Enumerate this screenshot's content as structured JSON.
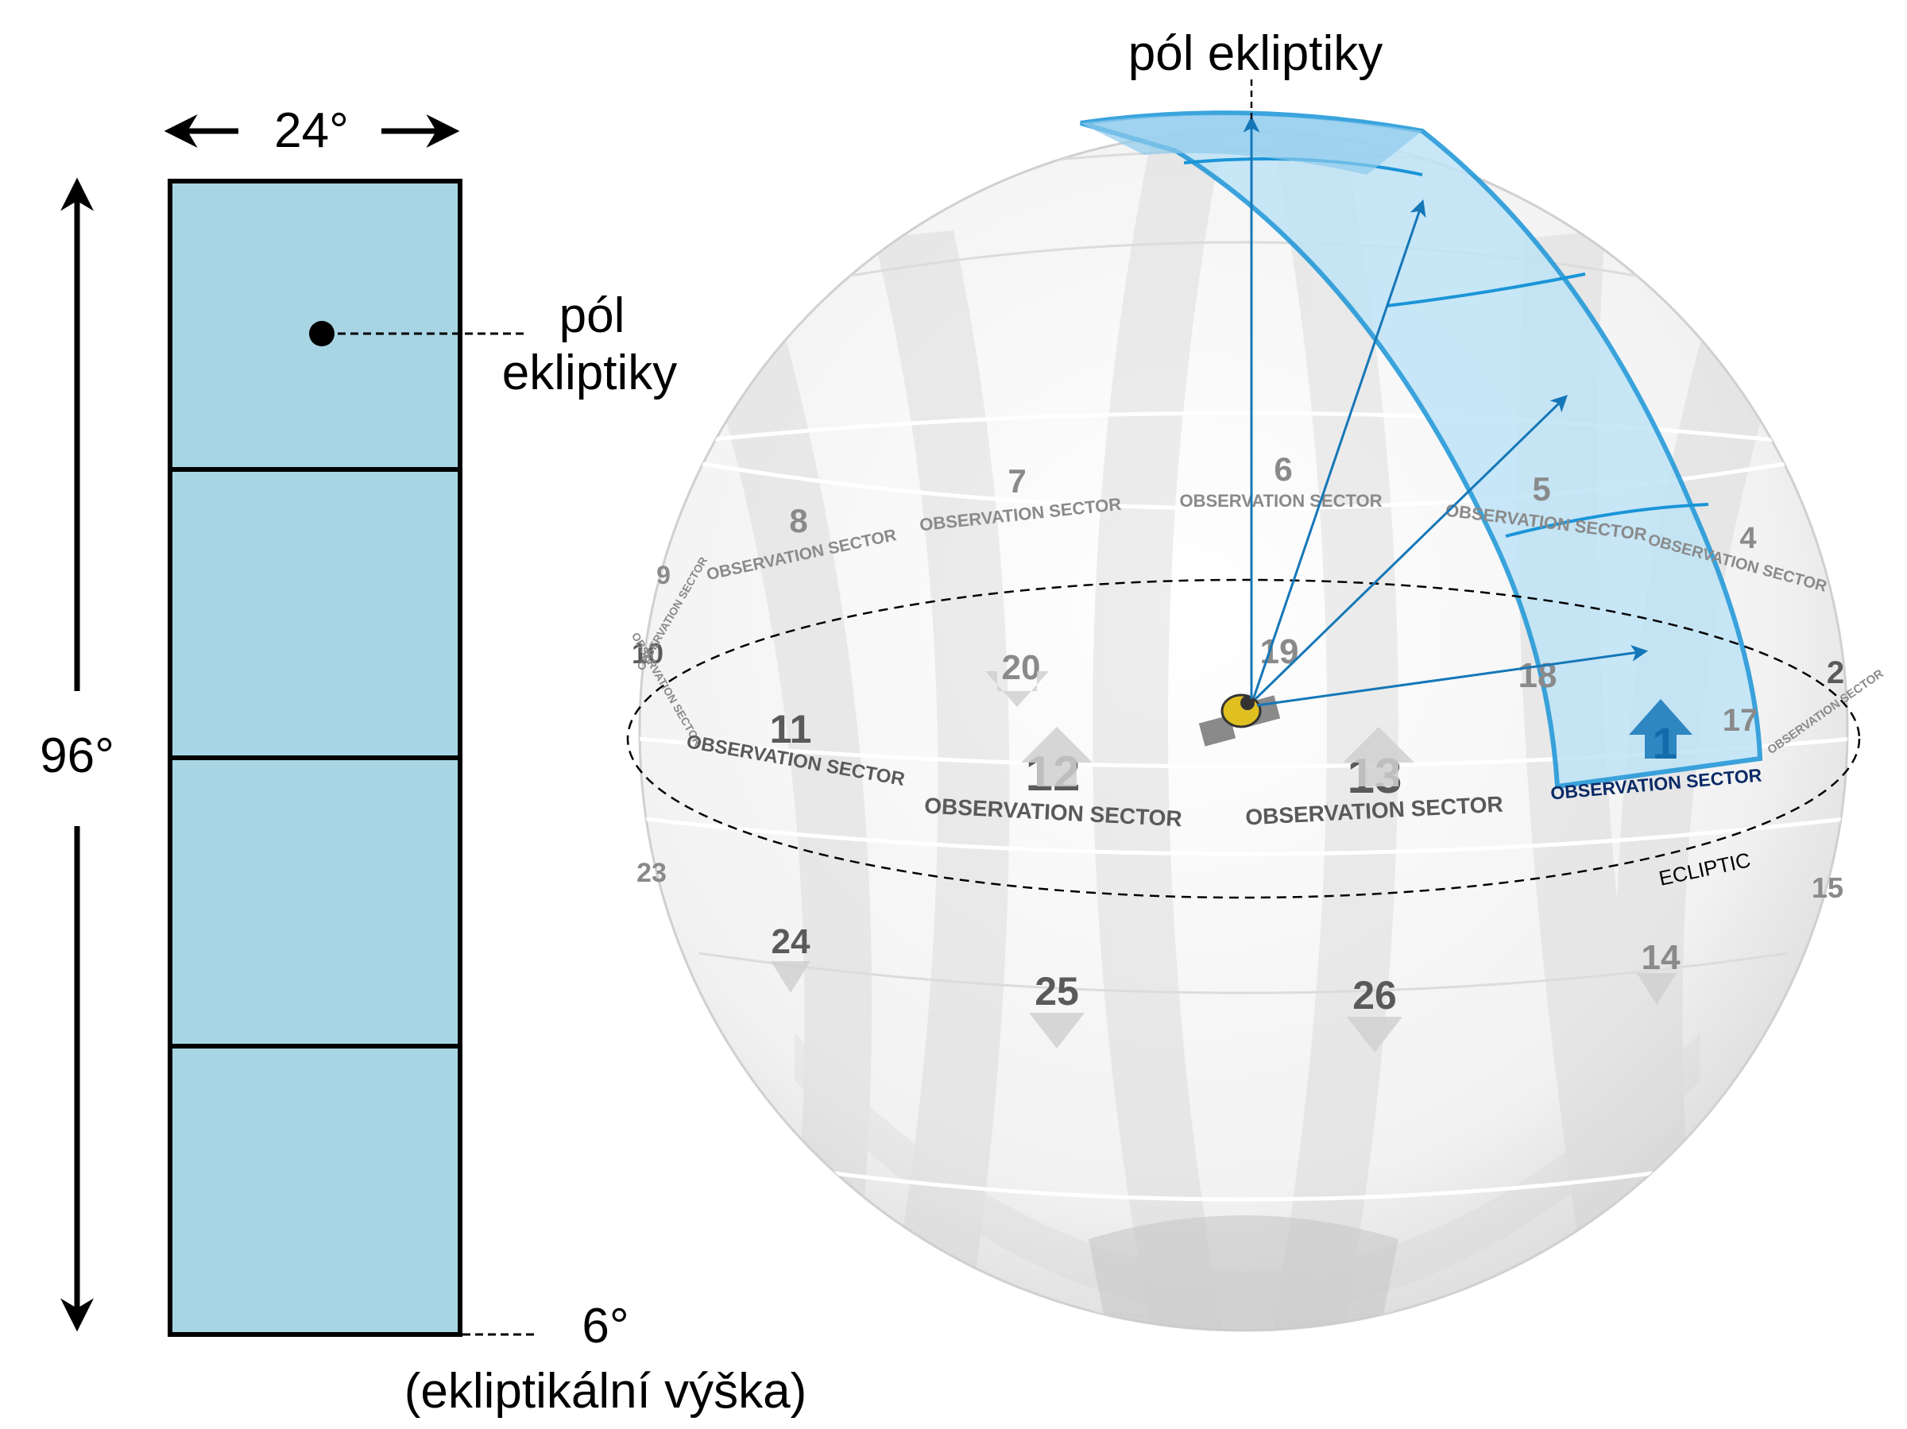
{
  "left_panel": {
    "width_label": "24°",
    "height_label": "96°",
    "pole_label_line1": "pól",
    "pole_label_line2": "ekliptiky",
    "bottom_angle_label": "6°",
    "bottom_caption": "(ekliptikální výška)",
    "camera_count": 4
  },
  "sphere": {
    "pole_label": "pól ekliptiky",
    "ecliptic_label": "ECLIPTIC",
    "sector_text": "OBSERVATION SECTOR",
    "sectors": [
      {
        "num": "1",
        "label": "OBSERVATION SECTOR",
        "highlighted": true
      },
      {
        "num": "2",
        "label": "OBSERVATION SECTOR"
      },
      {
        "num": "4",
        "label": "OBSERVATION SECTOR"
      },
      {
        "num": "5",
        "label": "OBSERVATION SECTOR"
      },
      {
        "num": "6",
        "label": "OBSERVATION SECTOR"
      },
      {
        "num": "7",
        "label": "OBSERVATION SECTOR"
      },
      {
        "num": "8",
        "label": "OBSERVATION SECTOR"
      },
      {
        "num": "9",
        "label": "OBSERVATION SECTOR"
      },
      {
        "num": "10",
        "label": "OBSERVATION SECTOR"
      },
      {
        "num": "11",
        "label": "OBSERVATION SECTOR"
      },
      {
        "num": "12",
        "label": "OBSERVATION SECTOR"
      },
      {
        "num": "13",
        "label": "OBSERVATION SECTOR"
      },
      {
        "num": "14",
        "label": ""
      },
      {
        "num": "15",
        "label": ""
      },
      {
        "num": "17",
        "label": ""
      },
      {
        "num": "18",
        "label": ""
      },
      {
        "num": "19",
        "label": ""
      },
      {
        "num": "20",
        "label": ""
      },
      {
        "num": "23",
        "label": ""
      },
      {
        "num": "24",
        "label": ""
      },
      {
        "num": "25",
        "label": ""
      },
      {
        "num": "26",
        "label": ""
      }
    ]
  },
  "colors": {
    "camera_fill": "#a8d5e4",
    "highlight_blue": "#1a95d8",
    "highlight_fill": "#bfe4f7",
    "sphere_grey": "#cfcfcf",
    "label_black": "#000000"
  }
}
